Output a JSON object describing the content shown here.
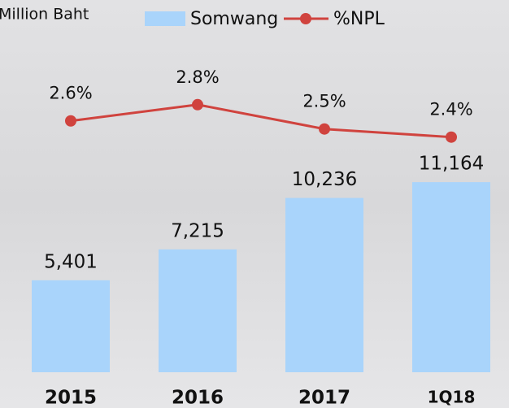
{
  "chart_data": {
    "type": "bar-line",
    "y_label": "Million Baht",
    "categories": [
      "2015",
      "2016",
      "2017",
      "1Q18"
    ],
    "series": [
      {
        "name": "Somwang",
        "type": "bar",
        "color": "#a9d4fb",
        "values": [
          5401,
          7215,
          10236,
          11164
        ],
        "value_labels": [
          "5,401",
          "7,215",
          "10,236",
          "11,164"
        ]
      },
      {
        "name": "%NPL",
        "type": "line",
        "axis": "y2",
        "color": "#d0433e",
        "values": [
          2.6,
          2.8,
          2.5,
          2.4
        ],
        "value_labels": [
          "2.6%",
          "2.8%",
          "2.5%",
          "2.4%"
        ]
      }
    ],
    "ylim": [
      0,
      20000
    ],
    "y2lim": [
      -0.5,
      3.7
    ],
    "legend": "top"
  }
}
